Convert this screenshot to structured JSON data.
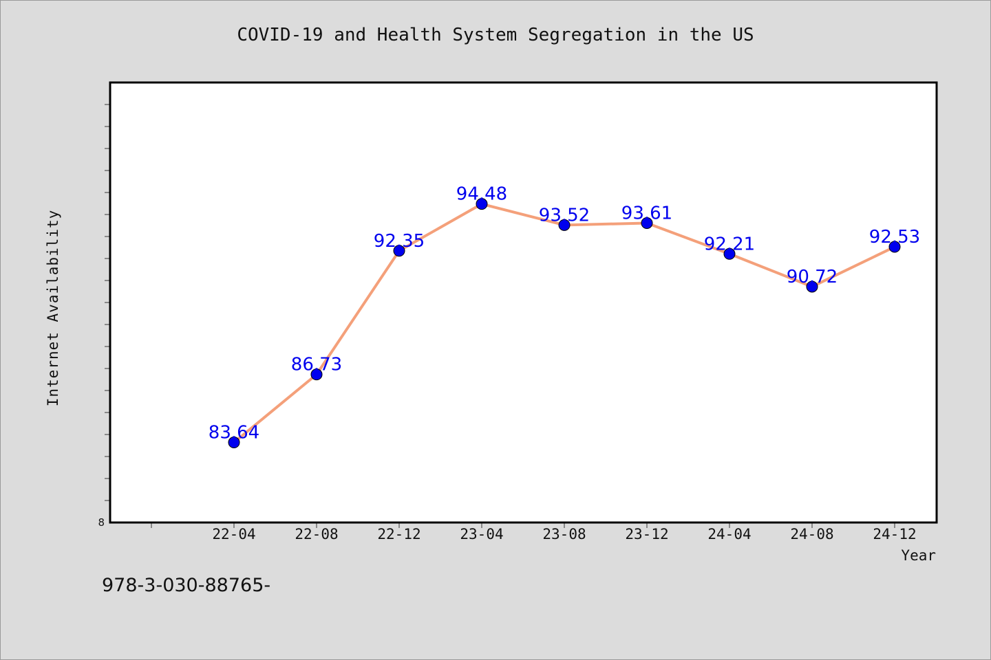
{
  "title": "COVID-19 and Health System Segregation in the US",
  "footnote": "978-3-030-88765-",
  "colors": {
    "line": "#f4a07a",
    "marker": "#0000ee",
    "label": "#0000ee",
    "plot_bg": "#ffffff",
    "page_bg": "#dcdcdc"
  },
  "chart_data": {
    "type": "line",
    "title": "COVID-19 and Health System Segregation in the US",
    "xlabel": "Year",
    "ylabel": "Internet Availability",
    "categories": [
      "22-04",
      "22-08",
      "22-12",
      "23-04",
      "23-08",
      "23-12",
      "24-04",
      "24-08",
      "24-12"
    ],
    "series": [
      {
        "values": [
          83.64,
          86.73,
          92.35,
          94.48,
          93.52,
          93.61,
          92.21,
          90.72,
          92.53
        ]
      }
    ],
    "data_labels": [
      "83.64",
      "86.73",
      "92.35",
      "94.48",
      "93.52",
      "93.61",
      "92.21",
      "90.72",
      "92.53"
    ],
    "y_tick_labels": [
      "8"
    ],
    "ylim": [
      80,
      100
    ],
    "grid": false,
    "legend": "none"
  }
}
